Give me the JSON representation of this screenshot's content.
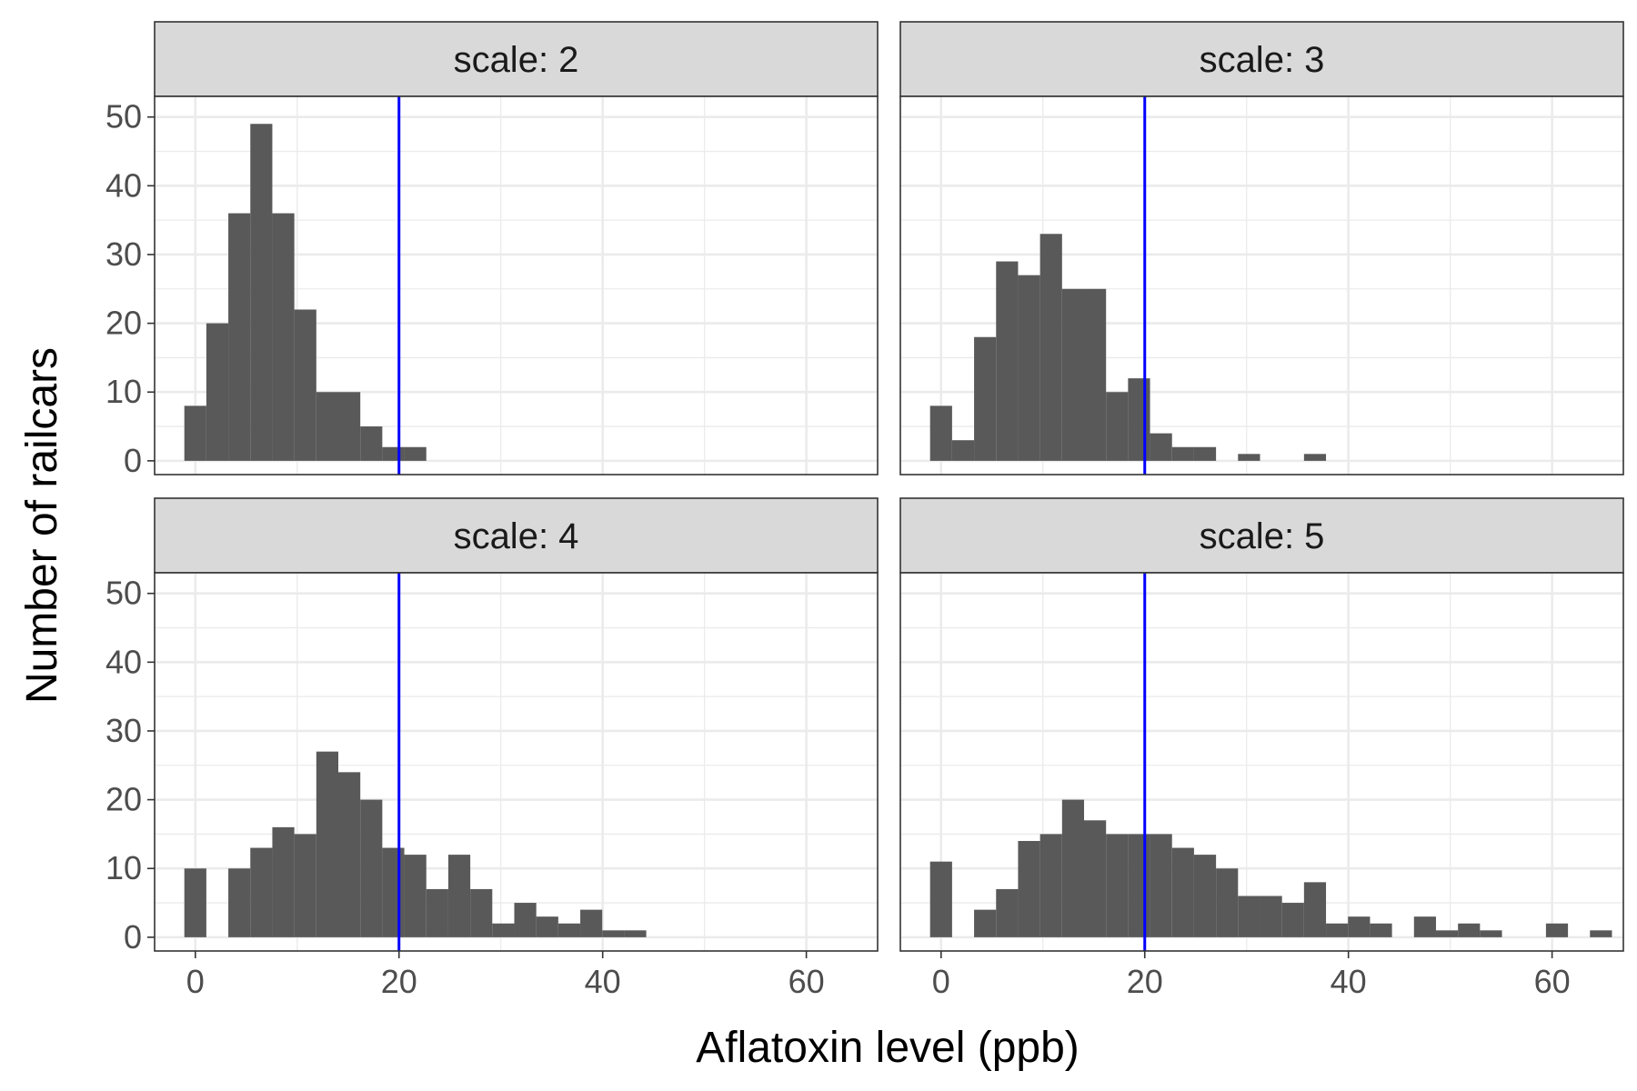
{
  "chart_data": {
    "type": "bar",
    "subtype": "faceted-histogram",
    "xlabel": "Aflatoxin level (ppb)",
    "ylabel": "Number of railcars",
    "xlim": [
      -4,
      67
    ],
    "ylim": [
      -2,
      53
    ],
    "xticks": [
      0,
      20,
      40,
      60
    ],
    "yticks": [
      0,
      10,
      20,
      30,
      40,
      50
    ],
    "bin_width": 2.16,
    "bin_start": -1.08,
    "grid": true,
    "reference_line": {
      "x": 20,
      "color": "#0000ff"
    },
    "bar_color": "#595959",
    "panels": [
      {
        "label": "scale: 2",
        "counts": [
          8,
          20,
          36,
          49,
          36,
          22,
          10,
          10,
          5,
          2,
          2
        ]
      },
      {
        "label": "scale: 3",
        "counts": [
          8,
          3,
          18,
          29,
          27,
          33,
          25,
          25,
          10,
          12,
          4,
          2,
          2,
          0,
          1,
          0,
          0,
          1
        ]
      },
      {
        "label": "scale: 4",
        "counts": [
          10,
          0,
          10,
          13,
          16,
          15,
          27,
          24,
          20,
          13,
          12,
          7,
          12,
          7,
          2,
          5,
          3,
          2,
          4,
          1,
          1
        ]
      },
      {
        "label": "scale: 5",
        "counts": [
          11,
          0,
          4,
          7,
          14,
          15,
          20,
          17,
          15,
          15,
          15,
          13,
          12,
          10,
          6,
          6,
          5,
          8,
          2,
          3,
          2,
          0,
          3,
          1,
          2,
          1,
          0,
          0,
          2,
          0,
          1
        ]
      }
    ]
  }
}
